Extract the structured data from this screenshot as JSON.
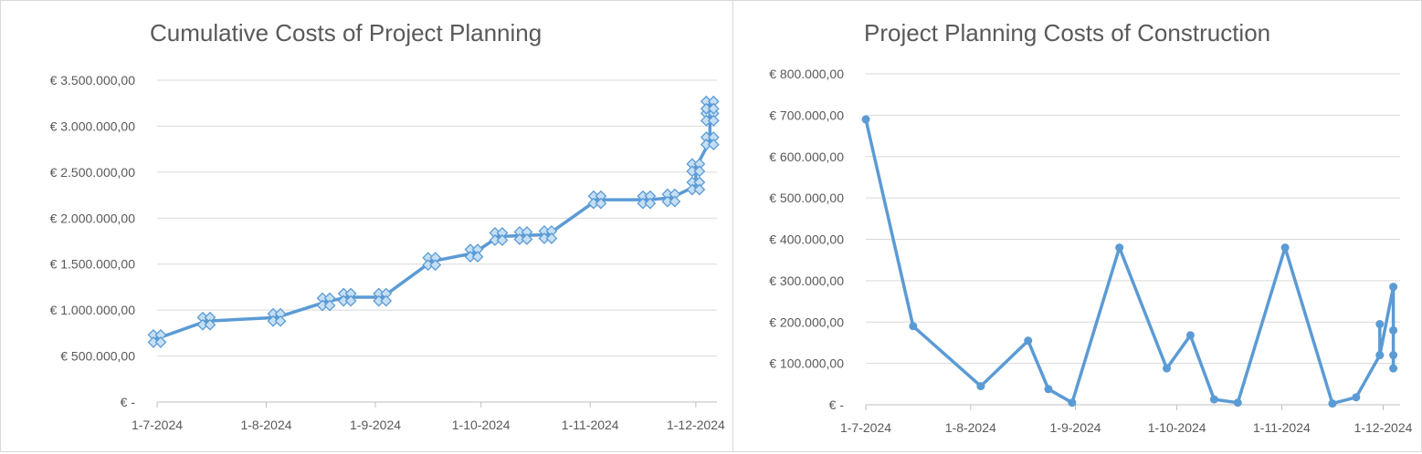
{
  "chart_data": [
    {
      "type": "line",
      "title": "Cumulative Costs of Project Planning",
      "xlabel": "",
      "ylabel": "",
      "x_tick_labels": [
        "1-7-2024",
        "1-8-2024",
        "1-9-2024",
        "1-10-2024",
        "1-11-2024",
        "1-12-2024"
      ],
      "y_tick_labels": [
        "€ -",
        "€ 500.000,00",
        "€ 1.000.000,00",
        "€ 1.500.000,00",
        "€ 2.000.000,00",
        "€ 2.500.000,00",
        "€ 3.000.000,00",
        "€ 3.500.000,00"
      ],
      "ylim": [
        0,
        3500000
      ],
      "xlim": [
        "2024-07-01",
        "2024-12-07"
      ],
      "grid": true,
      "marker": "diamond-cluster",
      "color": "#5b9bd5",
      "series": [
        {
          "x": [
            "2024-07-01",
            "2024-07-15",
            "2024-08-04",
            "2024-08-18",
            "2024-08-24",
            "2024-09-03",
            "2024-09-17",
            "2024-09-29",
            "2024-10-06",
            "2024-10-13",
            "2024-10-20",
            "2024-11-03",
            "2024-11-17",
            "2024-11-24",
            "2024-12-01",
            "2024-12-01",
            "2024-12-05",
            "2024-12-05",
            "2024-12-05"
          ],
          "y": [
            690000,
            880000,
            920000,
            1090000,
            1140000,
            1140000,
            1530000,
            1620000,
            1800000,
            1810000,
            1820000,
            2200000,
            2200000,
            2220000,
            2350000,
            2550000,
            2840000,
            3100000,
            3230000
          ]
        }
      ]
    },
    {
      "type": "line",
      "title": "Project Planning Costs of Construction",
      "xlabel": "",
      "ylabel": "",
      "x_tick_labels": [
        "1-7-2024",
        "1-8-2024",
        "1-9-2024",
        "1-10-2024",
        "1-11-2024",
        "1-12-2024"
      ],
      "y_tick_labels": [
        "€ -",
        "€ 100.000,00",
        "€ 200.000,00",
        "€ 300.000,00",
        "€ 400.000,00",
        "€ 500.000,00",
        "€ 600.000,00",
        "€ 700.000,00",
        "€ 800.000,00"
      ],
      "ylim": [
        0,
        800000
      ],
      "xlim": [
        "2024-07-01",
        "2024-12-06"
      ],
      "grid": true,
      "marker": "circle",
      "color": "#5b9bd5",
      "series": [
        {
          "x": [
            "2024-07-01",
            "2024-07-15",
            "2024-08-04",
            "2024-08-18",
            "2024-08-24",
            "2024-08-31",
            "2024-09-14",
            "2024-09-28",
            "2024-10-05",
            "2024-10-12",
            "2024-10-19",
            "2024-11-02",
            "2024-11-16",
            "2024-11-23",
            "2024-11-30",
            "2024-11-30",
            "2024-11-30",
            "2024-12-04",
            "2024-12-04",
            "2024-12-04",
            "2024-12-04"
          ],
          "y": [
            690000,
            190000,
            45000,
            155000,
            38000,
            5000,
            380000,
            88000,
            168000,
            13000,
            5000,
            380000,
            3000,
            18000,
            120000,
            195000,
            120000,
            285000,
            180000,
            120000,
            88000
          ]
        }
      ]
    }
  ]
}
